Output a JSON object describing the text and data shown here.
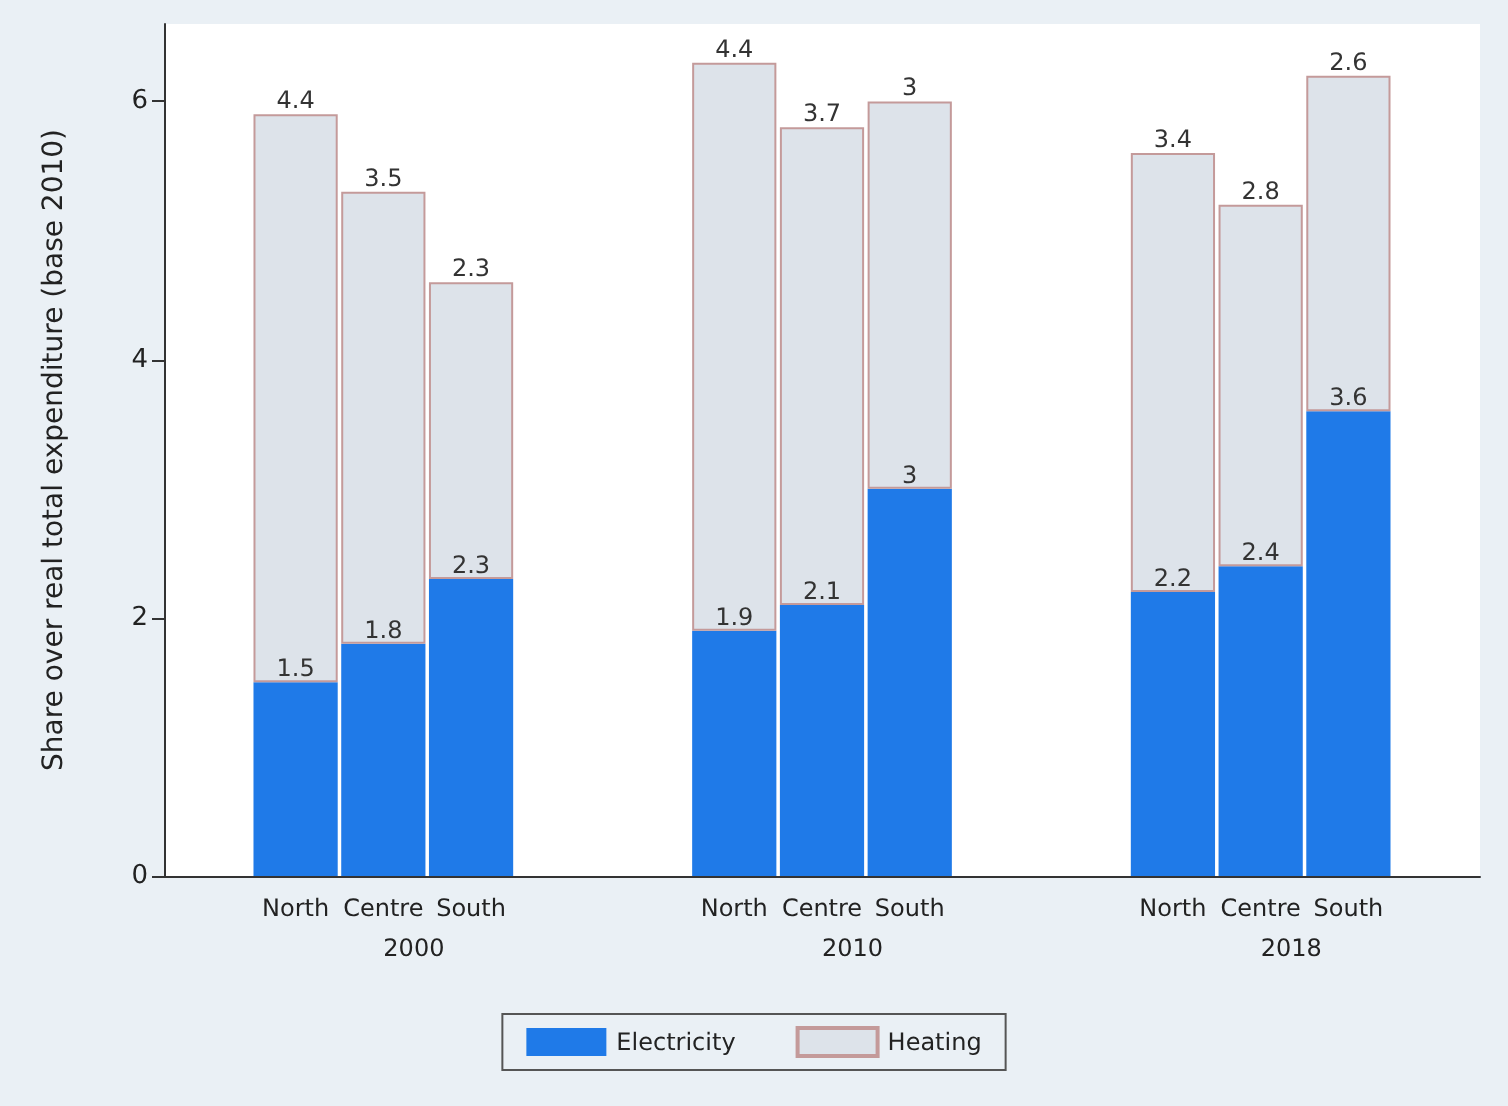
{
  "chart_data": {
    "type": "bar",
    "stacked": true,
    "ylabel": "Share over real total expenditure (base 2010)",
    "categories": [
      null,
      "North",
      "Centre",
      "South",
      null,
      null,
      "North",
      "Centre",
      "South",
      null,
      null,
      "North",
      "Centre",
      "South",
      null
    ],
    "series": [
      {
        "name": "Electricity",
        "color": "#1f7ae8",
        "values": [
          null,
          1.5,
          1.8,
          2.3,
          null,
          null,
          1.9,
          2.1,
          3,
          null,
          null,
          2.2,
          2.4,
          3.6,
          null
        ]
      },
      {
        "name": "Heating",
        "color": "#dde3ea",
        "values": [
          null,
          4.4,
          3.5,
          2.3,
          null,
          null,
          4.4,
          3.7,
          3,
          null,
          null,
          3.4,
          2.8,
          2.6,
          null
        ]
      }
    ],
    "annotations": [
      "2000",
      "2010",
      "2018"
    ],
    "ylim": [
      0,
      6.6
    ],
    "yticks": [
      0,
      2,
      4,
      6
    ],
    "data_labels": true,
    "grid": false,
    "legend": "bottom"
  }
}
